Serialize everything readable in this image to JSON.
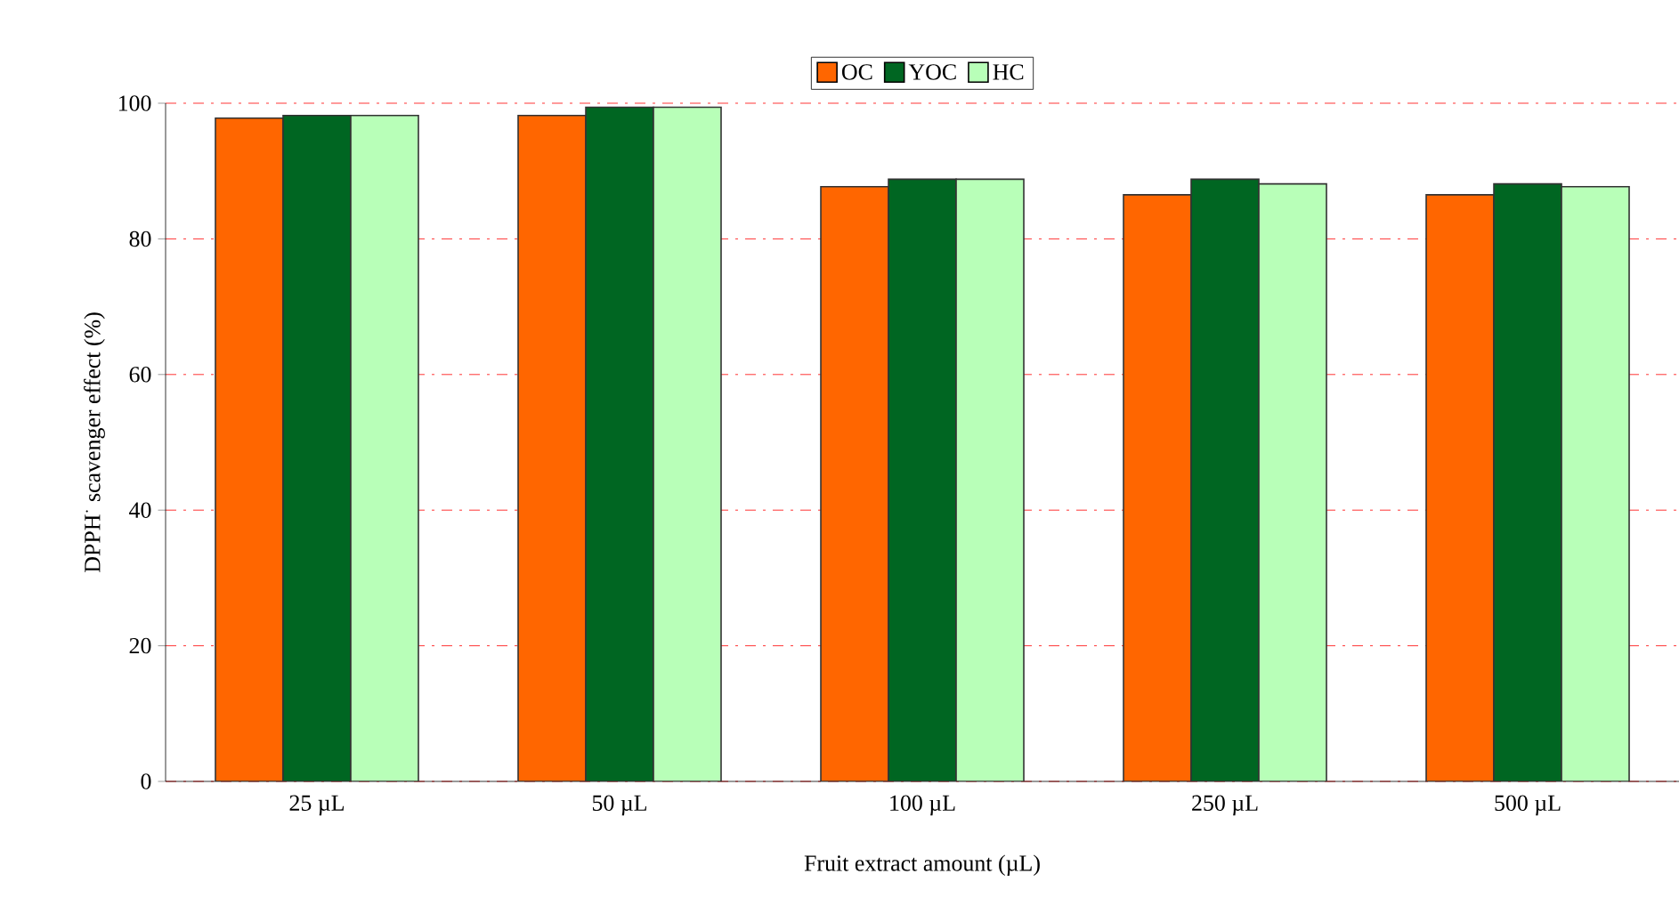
{
  "chart_data": {
    "type": "bar",
    "xlabel": "Fruit extract amount (µL)",
    "ylabel": "DPPH$^{·}$ scavenger effect (%)",
    "categories": [
      "25 µL",
      "50 µL",
      "100 µL",
      "250 µL",
      "500 µL"
    ],
    "series": [
      {
        "name": "OC",
        "color": "#ff6600",
        "values": [
          97.8,
          98.2,
          87.7,
          86.5,
          86.5
        ]
      },
      {
        "name": "YOC",
        "color": "#006622",
        "values": [
          98.2,
          99.4,
          88.8,
          88.8,
          88.1
        ]
      },
      {
        "name": "HC",
        "color": "#b8ffb8",
        "values": [
          98.2,
          99.4,
          88.8,
          88.1,
          87.7
        ]
      }
    ],
    "ylim": [
      0,
      100
    ],
    "yticks": [
      0,
      20,
      40,
      60,
      80,
      100
    ],
    "grid": "y",
    "legend": "top"
  }
}
